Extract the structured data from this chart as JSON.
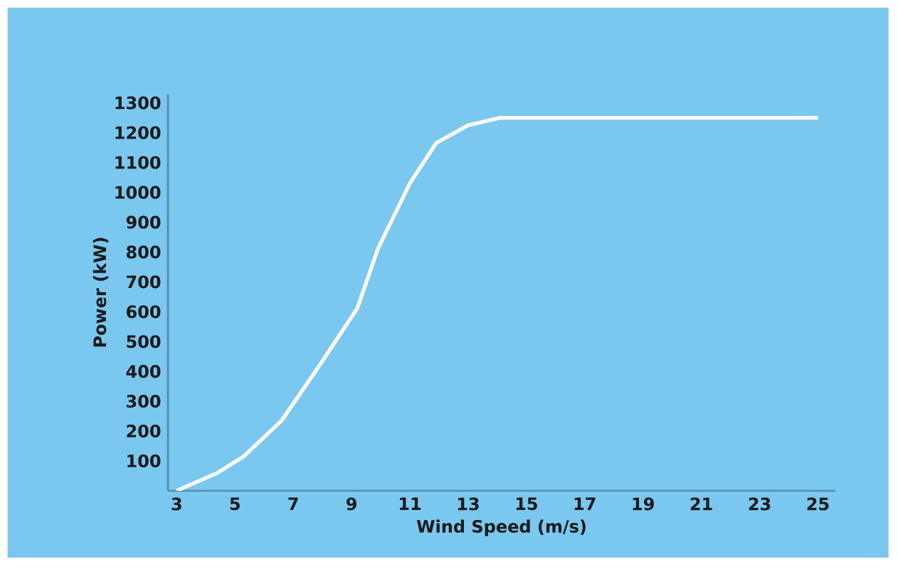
{
  "chart_data": {
    "type": "line",
    "xlabel": "Wind Speed (m/s)",
    "ylabel": "Power (kW)",
    "x": [
      3,
      4.4,
      5.3,
      6.6,
      7.9,
      9.2,
      9.9,
      11,
      11.9,
      13,
      14.1,
      25
    ],
    "series": [
      {
        "color": "#ffffff",
        "values": [
          0,
          60,
          115,
          235,
          420,
          612,
          810,
          1030,
          1165,
          1225,
          1250,
          1250
        ]
      }
    ],
    "xlim": [
      2.7,
      25.6
    ],
    "ylim": [
      0,
      1330
    ],
    "xticks": [
      3,
      5,
      7,
      9,
      11,
      13,
      15,
      17,
      19,
      21,
      23,
      25
    ],
    "yticks": [
      100,
      200,
      300,
      400,
      500,
      600,
      700,
      800,
      900,
      1000,
      1100,
      1200,
      1300
    ],
    "grid": false,
    "marker": "none",
    "line_style": "solid"
  }
}
